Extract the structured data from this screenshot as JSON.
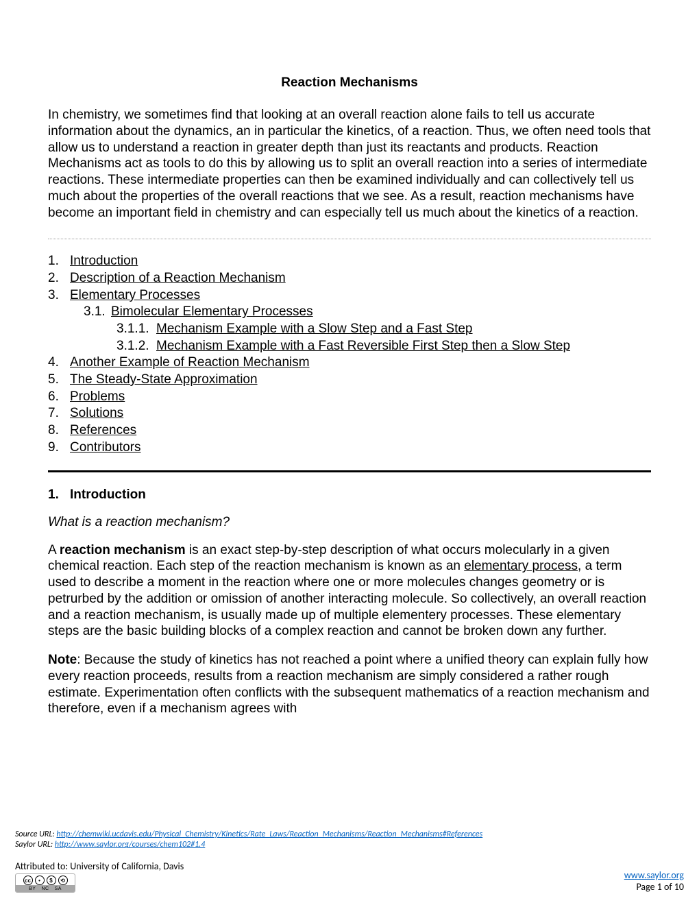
{
  "title": "Reaction Mechanisms",
  "intro": "In chemistry, we sometimes find that looking at an overall reaction alone fails to tell us accurate information about the dynamics, an in particular the kinetics, of a reaction. Thus, we often need tools that allow us to understand a reaction in greater depth than just its reactants and products. Reaction Mechanisms act as tools to do this by allowing us to split an overall reaction into a series of intermediate reactions. These intermediate properties can then be examined individually and can collectively tell us much about the properties of the overall reactions that we see. As a result, reaction mechanisms have become an important field in chemistry and can especially tell us much about the kinetics of a reaction.",
  "toc": {
    "items": [
      {
        "num": "1.",
        "label": "Introduction"
      },
      {
        "num": "2.",
        "label": "Description of a Reaction Mechanism"
      },
      {
        "num": "3.",
        "label": "Elementary Processes"
      },
      {
        "num": "4.",
        "label": "Another Example of Reaction Mechanism"
      },
      {
        "num": "5.",
        "label": "The Steady-State Approximation"
      },
      {
        "num": "6.",
        "label": "Problems"
      },
      {
        "num": "7.",
        "label": "Solutions"
      },
      {
        "num": "8.",
        "label": "References"
      },
      {
        "num": "9.",
        "label": "Contributors"
      }
    ],
    "sub1": {
      "num": "3.1.",
      "label": "Bimolecular Elementary Processes"
    },
    "sub2a": {
      "num": "3.1.1.",
      "label": "Mechanism Example with a Slow Step and a Fast Step"
    },
    "sub2b": {
      "num": "3.1.2.",
      "label": "Mechanism Example with a Fast Reversible First Step then a Slow Step"
    }
  },
  "section": {
    "num": "1.",
    "heading": "Introduction",
    "question": "What is a reaction mechanism?",
    "para1_prefix": "A ",
    "para1_bold": "reaction mechanism",
    "para1_mid": " is an exact step-by-step description of what occurs molecularly in a given chemical reaction. Each step of the reaction mechanism is known as an ",
    "para1_underlined": "elementary process",
    "para1_suffix": ", a term used to describe a moment in the reaction where one or more molecules changes geometry or is petrurbed by the addition or omission of another interacting molecule. So collectively, an overall reaction and a reaction mechanism, is usually made up of multiple elementery processes. These elementary steps are the basic building blocks of a complex reaction and cannot be broken down any further.",
    "note_label": "Note",
    "note_text": ": Because the study of kinetics has not reached a point where a unified theory can explain fully how every reaction proceeds, results from a reaction mechanism are simply considered a rather rough estimate. Experimentation often conflicts with the subsequent mathematics of a reaction mechanism and therefore, even if a mechanism agrees with"
  },
  "footer": {
    "source_label": "Source URL: ",
    "source_url": "http://chemwiki.ucdavis.edu/Physical_Chemistry/Kinetics/Rate_Laws/Reaction_Mechanisms/Reaction_Mechanisms#References",
    "saylor_label": "Saylor URL: ",
    "saylor_course_url": "http://www.saylor.org/courses/chem102#1.4",
    "attributed": "Attributed to: University of California, Davis",
    "saylor_link": "www.saylor.org",
    "page": "Page 1 of 10",
    "cc": {
      "by": "BY",
      "nc": "NC",
      "sa": "SA"
    }
  },
  "colors": {
    "link_blue": "#0563c1",
    "text": "#000000",
    "dotted": "#999999",
    "cc_gray": "#a8a8a8"
  }
}
